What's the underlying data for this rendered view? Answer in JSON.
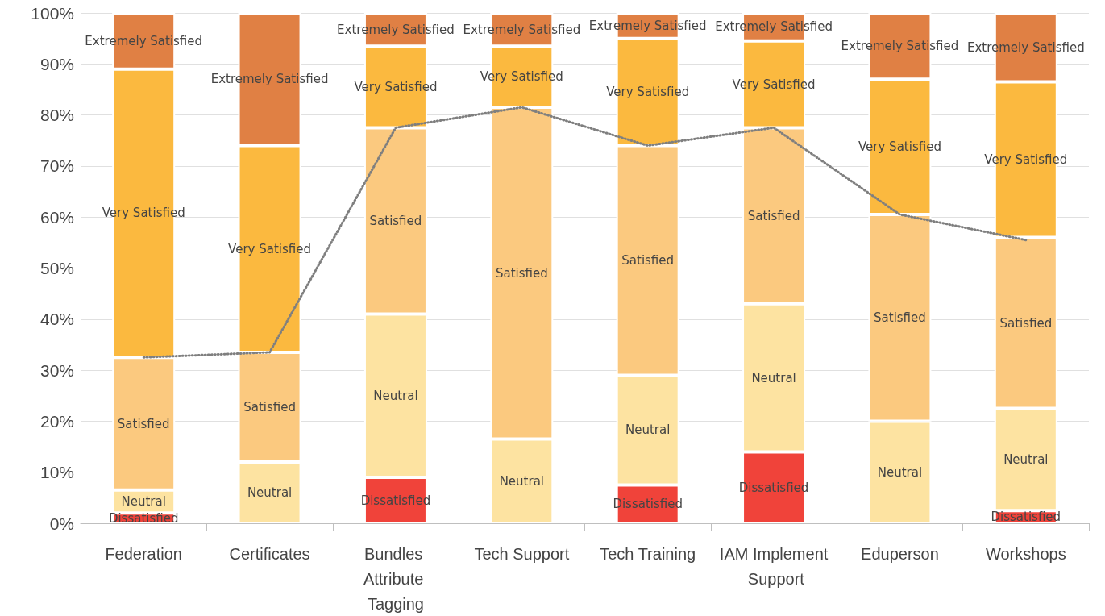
{
  "chart_data": {
    "type": "bar",
    "stacked": true,
    "categories": [
      "Federation",
      "Certificates",
      "Bundles Attribute Tagging",
      "Tech Support",
      "Tech Training",
      "IAM Implement Support",
      "Eduperson",
      "Workshops"
    ],
    "series": [
      {
        "name": "Dissatisfied",
        "color": "#f0433a",
        "values": [
          2,
          null,
          9,
          null,
          7.5,
          14,
          null,
          2.5
        ]
      },
      {
        "name": "Neutral",
        "color": "#fde3a1",
        "values": [
          4.5,
          12,
          32,
          16.5,
          21.5,
          29,
          20,
          20
        ]
      },
      {
        "name": "Satisfied",
        "color": "#fbc97f",
        "values": [
          26,
          21.5,
          36.5,
          65,
          45,
          34.5,
          40.5,
          33.5
        ]
      },
      {
        "name": "Very Satisfied",
        "color": "#fbb93f",
        "values": [
          56.5,
          40.5,
          16,
          12,
          21,
          17,
          26.5,
          30.5
        ]
      },
      {
        "name": "Extremely Satisfied",
        "color": "#e08044",
        "values": [
          11,
          26,
          6.5,
          6.5,
          5,
          5.5,
          13,
          13.5
        ]
      },
      {
        "type": "line",
        "color": "#7f7f7f",
        "line_style": "dotted",
        "marker": "none",
        "values": [
          32.5,
          33.5,
          77.5,
          81.5,
          74,
          77.5,
          60.5,
          55.5
        ]
      }
    ],
    "ylim": [
      0,
      100
    ],
    "yticks": [
      {
        "value": 0,
        "label": "0%"
      },
      {
        "value": 10,
        "label": "10%"
      },
      {
        "value": 20,
        "label": "20%"
      },
      {
        "value": 30,
        "label": "30%"
      },
      {
        "value": 40,
        "label": "40%"
      },
      {
        "value": 50,
        "label": "50%"
      },
      {
        "value": 60,
        "label": "60%"
      },
      {
        "value": 70,
        "label": "70%"
      },
      {
        "value": 80,
        "label": "80%"
      },
      {
        "value": 90,
        "label": "90%"
      },
      {
        "value": 100,
        "label": "100%"
      }
    ],
    "grid": "y",
    "legend": false
  }
}
